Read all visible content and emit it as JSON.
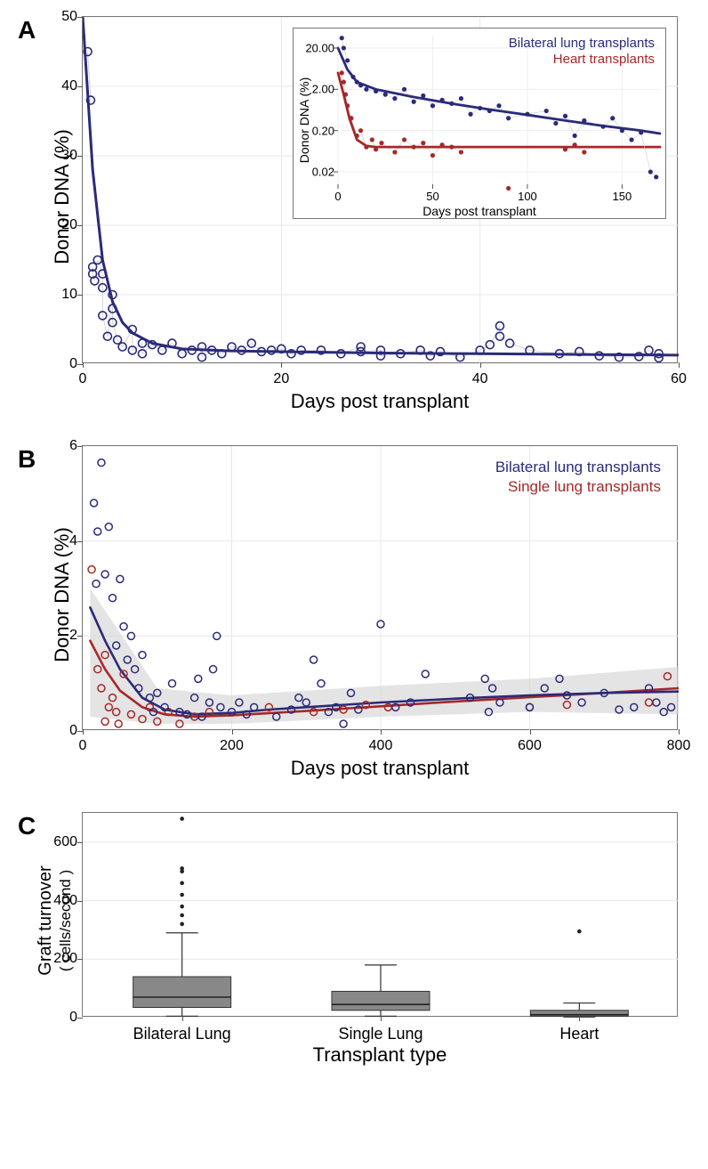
{
  "panelA": {
    "label": "A",
    "type": "scatter-line",
    "xlabel": "Days post transplant",
    "ylabel": "Donor DNA (%)",
    "xlim": [
      0,
      60
    ],
    "ylim": [
      0,
      50
    ],
    "xticks": [
      0,
      20,
      40,
      60
    ],
    "yticks": [
      0,
      10,
      20,
      30,
      40,
      50
    ],
    "point_stroke": "#2b2a7a",
    "point_fill": "none",
    "point_radius": 4.5,
    "line_color": "#2b2a7a",
    "line_width": 3,
    "trace_color": "#cccccc",
    "label_fontsize": 22,
    "tick_fontsize": 16,
    "data": [
      [
        0.5,
        45
      ],
      [
        0.8,
        38
      ],
      [
        1,
        14
      ],
      [
        1,
        13
      ],
      [
        1.2,
        12
      ],
      [
        1.5,
        15
      ],
      [
        2,
        13
      ],
      [
        2,
        11
      ],
      [
        2,
        7
      ],
      [
        2.5,
        4
      ],
      [
        3,
        10
      ],
      [
        3,
        8
      ],
      [
        3,
        6
      ],
      [
        3.5,
        3.5
      ],
      [
        4,
        2.5
      ],
      [
        5,
        5
      ],
      [
        5,
        2
      ],
      [
        6,
        3
      ],
      [
        6,
        1.5
      ],
      [
        7,
        2.8
      ],
      [
        8,
        2
      ],
      [
        9,
        3
      ],
      [
        10,
        1.5
      ],
      [
        11,
        2
      ],
      [
        12,
        2.5
      ],
      [
        12,
        1
      ],
      [
        13,
        2
      ],
      [
        14,
        1.5
      ],
      [
        15,
        2.5
      ],
      [
        16,
        2
      ],
      [
        17,
        3
      ],
      [
        18,
        1.8
      ],
      [
        19,
        2
      ],
      [
        20,
        2.2
      ],
      [
        21,
        1.5
      ],
      [
        22,
        2
      ],
      [
        24,
        2
      ],
      [
        26,
        1.5
      ],
      [
        28,
        2.5
      ],
      [
        28,
        1.8
      ],
      [
        30,
        2
      ],
      [
        30,
        1.2
      ],
      [
        32,
        1.5
      ],
      [
        34,
        2
      ],
      [
        35,
        1.2
      ],
      [
        36,
        1.8
      ],
      [
        38,
        1
      ],
      [
        40,
        2
      ],
      [
        41,
        2.8
      ],
      [
        42,
        5.5
      ],
      [
        42,
        4
      ],
      [
        43,
        3
      ],
      [
        45,
        2
      ],
      [
        48,
        1.5
      ],
      [
        50,
        1.8
      ],
      [
        52,
        1.2
      ],
      [
        54,
        1
      ],
      [
        56,
        1.1
      ],
      [
        57,
        2
      ],
      [
        58,
        0.9
      ],
      [
        58,
        1.5
      ]
    ],
    "curve": [
      [
        0,
        60
      ],
      [
        1,
        28
      ],
      [
        2,
        15
      ],
      [
        3,
        9
      ],
      [
        4,
        6
      ],
      [
        5,
        4.5
      ],
      [
        7,
        3
      ],
      [
        10,
        2.2
      ],
      [
        15,
        1.9
      ],
      [
        20,
        1.8
      ],
      [
        30,
        1.6
      ],
      [
        40,
        1.5
      ],
      [
        50,
        1.4
      ],
      [
        60,
        1.3
      ]
    ],
    "inset": {
      "xlabel": "Days post transplant",
      "ylabel": "Donor DNA (%)",
      "legend": [
        {
          "label": "Bilateral lung transplants",
          "color": "#2b2a7a"
        },
        {
          "label": "Heart transplants",
          "color": "#a62828"
        }
      ],
      "xlim": [
        0,
        170
      ],
      "yscale": "log",
      "ylim_display": [
        "0.02",
        "0.20",
        "2.00",
        "20.00"
      ],
      "xticks": [
        0,
        50,
        100,
        150
      ],
      "series_lung": {
        "color": "#2b2a7a",
        "data": [
          [
            2,
            35
          ],
          [
            3,
            20
          ],
          [
            5,
            10
          ],
          [
            8,
            4
          ],
          [
            10,
            3
          ],
          [
            12,
            2.5
          ],
          [
            15,
            2
          ],
          [
            20,
            1.8
          ],
          [
            25,
            1.5
          ],
          [
            30,
            1.2
          ],
          [
            35,
            2
          ],
          [
            40,
            1
          ],
          [
            45,
            1.4
          ],
          [
            50,
            0.8
          ],
          [
            55,
            1.1
          ],
          [
            60,
            0.9
          ],
          [
            65,
            1.2
          ],
          [
            70,
            0.5
          ],
          [
            75,
            0.7
          ],
          [
            80,
            0.6
          ],
          [
            85,
            0.8
          ],
          [
            90,
            0.4
          ],
          [
            100,
            0.5
          ],
          [
            110,
            0.6
          ],
          [
            115,
            0.3
          ],
          [
            120,
            0.45
          ],
          [
            125,
            0.15
          ],
          [
            130,
            0.35
          ],
          [
            140,
            0.25
          ],
          [
            145,
            0.4
          ],
          [
            150,
            0.2
          ],
          [
            155,
            0.12
          ],
          [
            160,
            0.18
          ],
          [
            165,
            0.02
          ],
          [
            168,
            0.015
          ]
        ],
        "curve": [
          [
            0,
            20
          ],
          [
            5,
            6
          ],
          [
            10,
            3
          ],
          [
            20,
            2
          ],
          [
            40,
            1.3
          ],
          [
            60,
            0.9
          ],
          [
            80,
            0.65
          ],
          [
            100,
            0.48
          ],
          [
            120,
            0.35
          ],
          [
            140,
            0.26
          ],
          [
            160,
            0.2
          ],
          [
            170,
            0.17
          ]
        ]
      },
      "series_heart": {
        "color": "#a62828",
        "data": [
          [
            2,
            5
          ],
          [
            3,
            3
          ],
          [
            4,
            1.5
          ],
          [
            5,
            0.8
          ],
          [
            7,
            0.4
          ],
          [
            10,
            0.15
          ],
          [
            12,
            0.2
          ],
          [
            15,
            0.08
          ],
          [
            18,
            0.12
          ],
          [
            20,
            0.07
          ],
          [
            23,
            0.1
          ],
          [
            30,
            0.06
          ],
          [
            35,
            0.12
          ],
          [
            40,
            0.08
          ],
          [
            45,
            0.1
          ],
          [
            50,
            0.05
          ],
          [
            55,
            0.09
          ],
          [
            60,
            0.08
          ],
          [
            65,
            0.06
          ],
          [
            90,
            0.008
          ],
          [
            120,
            0.07
          ],
          [
            125,
            0.09
          ],
          [
            130,
            0.06
          ]
        ],
        "curve": [
          [
            0,
            5
          ],
          [
            3,
            1.5
          ],
          [
            6,
            0.4
          ],
          [
            10,
            0.12
          ],
          [
            15,
            0.085
          ],
          [
            20,
            0.08
          ],
          [
            50,
            0.08
          ],
          [
            100,
            0.08
          ],
          [
            170,
            0.08
          ]
        ]
      }
    }
  },
  "panelB": {
    "label": "B",
    "type": "scatter-smooth",
    "xlabel": "Days post transplant",
    "ylabel": "Donor DNA (%)",
    "xlim": [
      0,
      800
    ],
    "ylim": [
      0,
      6
    ],
    "xticks": [
      0,
      200,
      400,
      600,
      800
    ],
    "yticks": [
      0,
      2,
      4,
      6
    ],
    "legend": [
      {
        "label": "Bilateral lung transplants",
        "color": "#2b2a7a"
      },
      {
        "label": "Single lung transplants",
        "color": "#a62828"
      }
    ],
    "ci_fill": "#d8d8d8",
    "series_blue": {
      "color": "#2b2a7a",
      "data": [
        [
          15,
          4.8
        ],
        [
          20,
          4.2
        ],
        [
          25,
          5.65
        ],
        [
          30,
          3.3
        ],
        [
          35,
          4.3
        ],
        [
          40,
          2.8
        ],
        [
          18,
          3.1
        ],
        [
          50,
          3.2
        ],
        [
          55,
          2.2
        ],
        [
          45,
          1.8
        ],
        [
          60,
          1.5
        ],
        [
          65,
          2
        ],
        [
          70,
          1.3
        ],
        [
          75,
          0.9
        ],
        [
          80,
          1.6
        ],
        [
          90,
          0.7
        ],
        [
          95,
          0.4
        ],
        [
          100,
          0.8
        ],
        [
          110,
          0.5
        ],
        [
          120,
          1
        ],
        [
          130,
          0.4
        ],
        [
          140,
          0.35
        ],
        [
          150,
          0.7
        ],
        [
          155,
          1.1
        ],
        [
          160,
          0.3
        ],
        [
          170,
          0.6
        ],
        [
          175,
          1.3
        ],
        [
          180,
          2
        ],
        [
          185,
          0.5
        ],
        [
          200,
          0.4
        ],
        [
          210,
          0.6
        ],
        [
          220,
          0.35
        ],
        [
          230,
          0.5
        ],
        [
          260,
          0.3
        ],
        [
          280,
          0.45
        ],
        [
          290,
          0.7
        ],
        [
          300,
          0.6
        ],
        [
          310,
          1.5
        ],
        [
          320,
          1
        ],
        [
          330,
          0.4
        ],
        [
          340,
          0.5
        ],
        [
          350,
          0.15
        ],
        [
          360,
          0.8
        ],
        [
          370,
          0.45
        ],
        [
          400,
          2.25
        ],
        [
          420,
          0.5
        ],
        [
          440,
          0.6
        ],
        [
          460,
          1.2
        ],
        [
          520,
          0.7
        ],
        [
          540,
          1.1
        ],
        [
          545,
          0.4
        ],
        [
          550,
          0.9
        ],
        [
          560,
          0.6
        ],
        [
          600,
          0.5
        ],
        [
          620,
          0.9
        ],
        [
          640,
          1.1
        ],
        [
          650,
          0.75
        ],
        [
          670,
          0.6
        ],
        [
          700,
          0.8
        ],
        [
          720,
          0.45
        ],
        [
          740,
          0.5
        ],
        [
          760,
          0.9
        ],
        [
          770,
          0.6
        ],
        [
          780,
          0.4
        ],
        [
          790,
          0.5
        ]
      ],
      "curve": [
        [
          10,
          2.6
        ],
        [
          30,
          1.9
        ],
        [
          50,
          1.3
        ],
        [
          80,
          0.7
        ],
        [
          110,
          0.45
        ],
        [
          150,
          0.35
        ],
        [
          200,
          0.38
        ],
        [
          250,
          0.45
        ],
        [
          300,
          0.5
        ],
        [
          400,
          0.6
        ],
        [
          500,
          0.68
        ],
        [
          600,
          0.75
        ],
        [
          700,
          0.8
        ],
        [
          800,
          0.83
        ]
      ]
    },
    "series_red": {
      "color": "#a62828",
      "data": [
        [
          12,
          3.4
        ],
        [
          20,
          1.3
        ],
        [
          25,
          0.9
        ],
        [
          30,
          1.6
        ],
        [
          35,
          0.5
        ],
        [
          40,
          0.7
        ],
        [
          30,
          0.2
        ],
        [
          45,
          0.4
        ],
        [
          48,
          0.15
        ],
        [
          55,
          1.2
        ],
        [
          65,
          0.35
        ],
        [
          80,
          0.25
        ],
        [
          90,
          0.5
        ],
        [
          100,
          0.2
        ],
        [
          115,
          0.4
        ],
        [
          130,
          0.15
        ],
        [
          150,
          0.3
        ],
        [
          170,
          0.4
        ],
        [
          250,
          0.5
        ],
        [
          310,
          0.4
        ],
        [
          350,
          0.45
        ],
        [
          380,
          0.55
        ],
        [
          410,
          0.5
        ],
        [
          600,
          0.5
        ],
        [
          650,
          0.55
        ],
        [
          760,
          0.6
        ],
        [
          785,
          1.15
        ]
      ],
      "curve": [
        [
          10,
          1.9
        ],
        [
          30,
          1.3
        ],
        [
          50,
          0.85
        ],
        [
          80,
          0.5
        ],
        [
          110,
          0.35
        ],
        [
          150,
          0.3
        ],
        [
          200,
          0.33
        ],
        [
          300,
          0.42
        ],
        [
          400,
          0.52
        ],
        [
          500,
          0.62
        ],
        [
          600,
          0.71
        ],
        [
          700,
          0.8
        ],
        [
          800,
          0.9
        ]
      ]
    },
    "ci_band": [
      [
        10,
        0.3,
        3.0
      ],
      [
        100,
        0.15,
        0.9
      ],
      [
        200,
        0.15,
        0.75
      ],
      [
        400,
        0.3,
        0.95
      ],
      [
        600,
        0.4,
        1.1
      ],
      [
        800,
        0.35,
        1.35
      ]
    ]
  },
  "panelC": {
    "label": "C",
    "type": "boxplot",
    "xlabel": "Transplant type",
    "ylabel_line1": "Graft turnover",
    "ylabel_line2": "( cells/second )",
    "yticks": [
      0,
      200,
      400,
      600
    ],
    "ylim": [
      0,
      700
    ],
    "categories": [
      "Bilateral Lung",
      "Single Lung",
      "Heart"
    ],
    "box_fill": "#888888",
    "box_stroke": "#333333",
    "boxes": [
      {
        "q1": 35,
        "median": 70,
        "q3": 140,
        "whisker_low": 5,
        "whisker_high": 290,
        "outliers": [
          320,
          350,
          380,
          420,
          460,
          500,
          510,
          680
        ]
      },
      {
        "q1": 25,
        "median": 45,
        "q3": 90,
        "whisker_low": 5,
        "whisker_high": 180,
        "outliers": []
      },
      {
        "q1": 5,
        "median": 10,
        "q3": 25,
        "whisker_low": 1,
        "whisker_high": 50,
        "outliers": [
          295
        ]
      }
    ]
  }
}
